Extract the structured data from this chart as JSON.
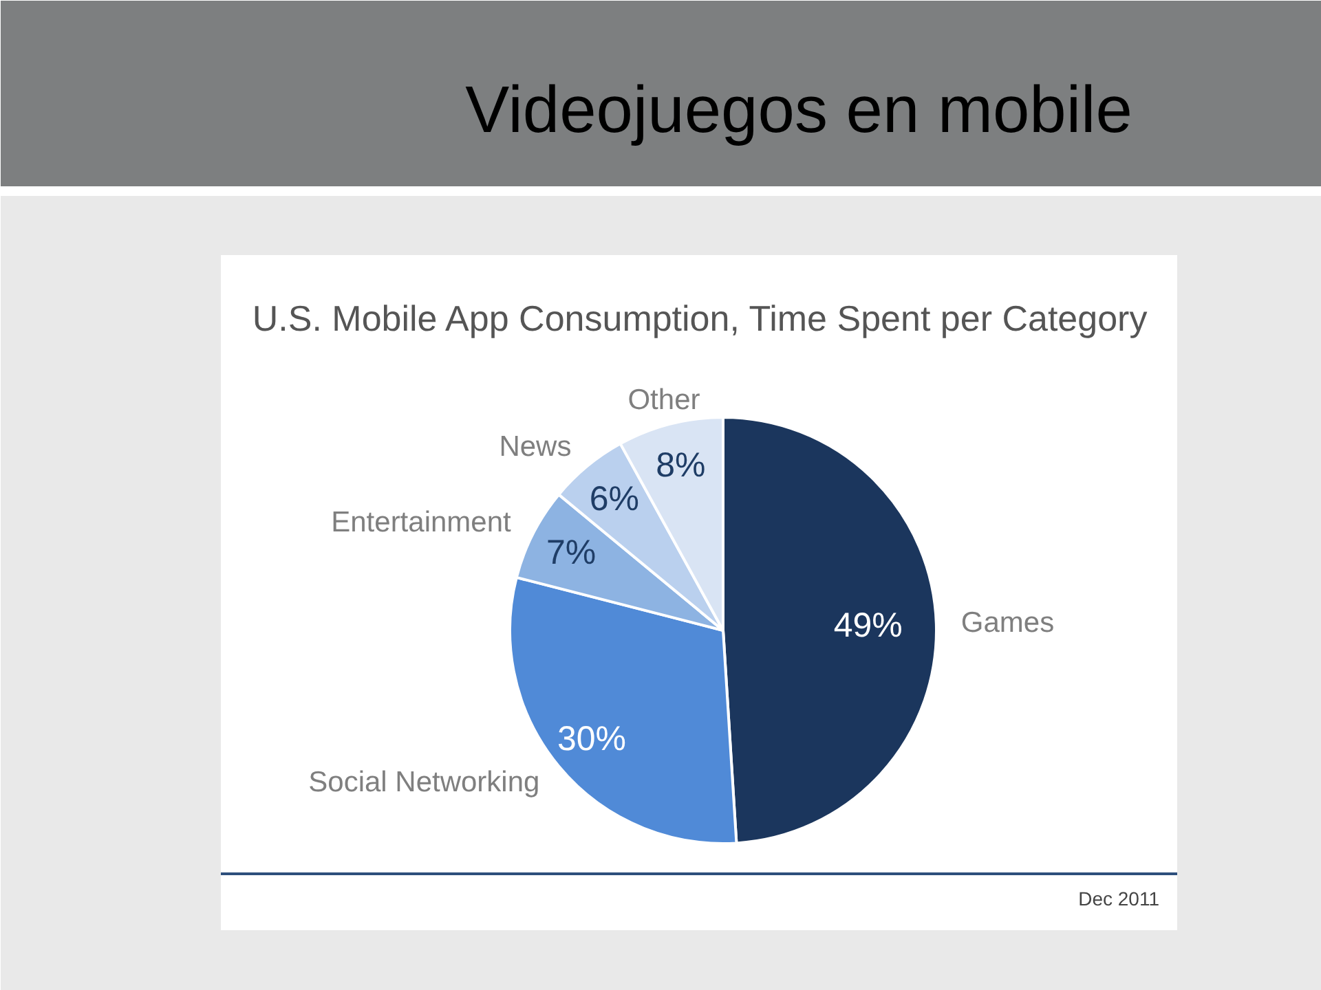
{
  "chart_data": {
    "type": "pie",
    "title": "Videojuegos en mobile",
    "subtitle": "U.S. Mobile App Consumption, Time Spent per Category",
    "annotations": [
      "Dec 2011"
    ],
    "categories": [
      "Games",
      "Social Networking",
      "Entertainment",
      "News",
      "Other"
    ],
    "values": [
      49,
      30,
      7,
      6,
      8
    ],
    "value_labels": [
      "49%",
      "30%",
      "7%",
      "6%",
      "8%"
    ],
    "colors": [
      "#1b365d",
      "#508ad7",
      "#8db3e2",
      "#bad0ee",
      "#d9e4f4"
    ]
  }
}
